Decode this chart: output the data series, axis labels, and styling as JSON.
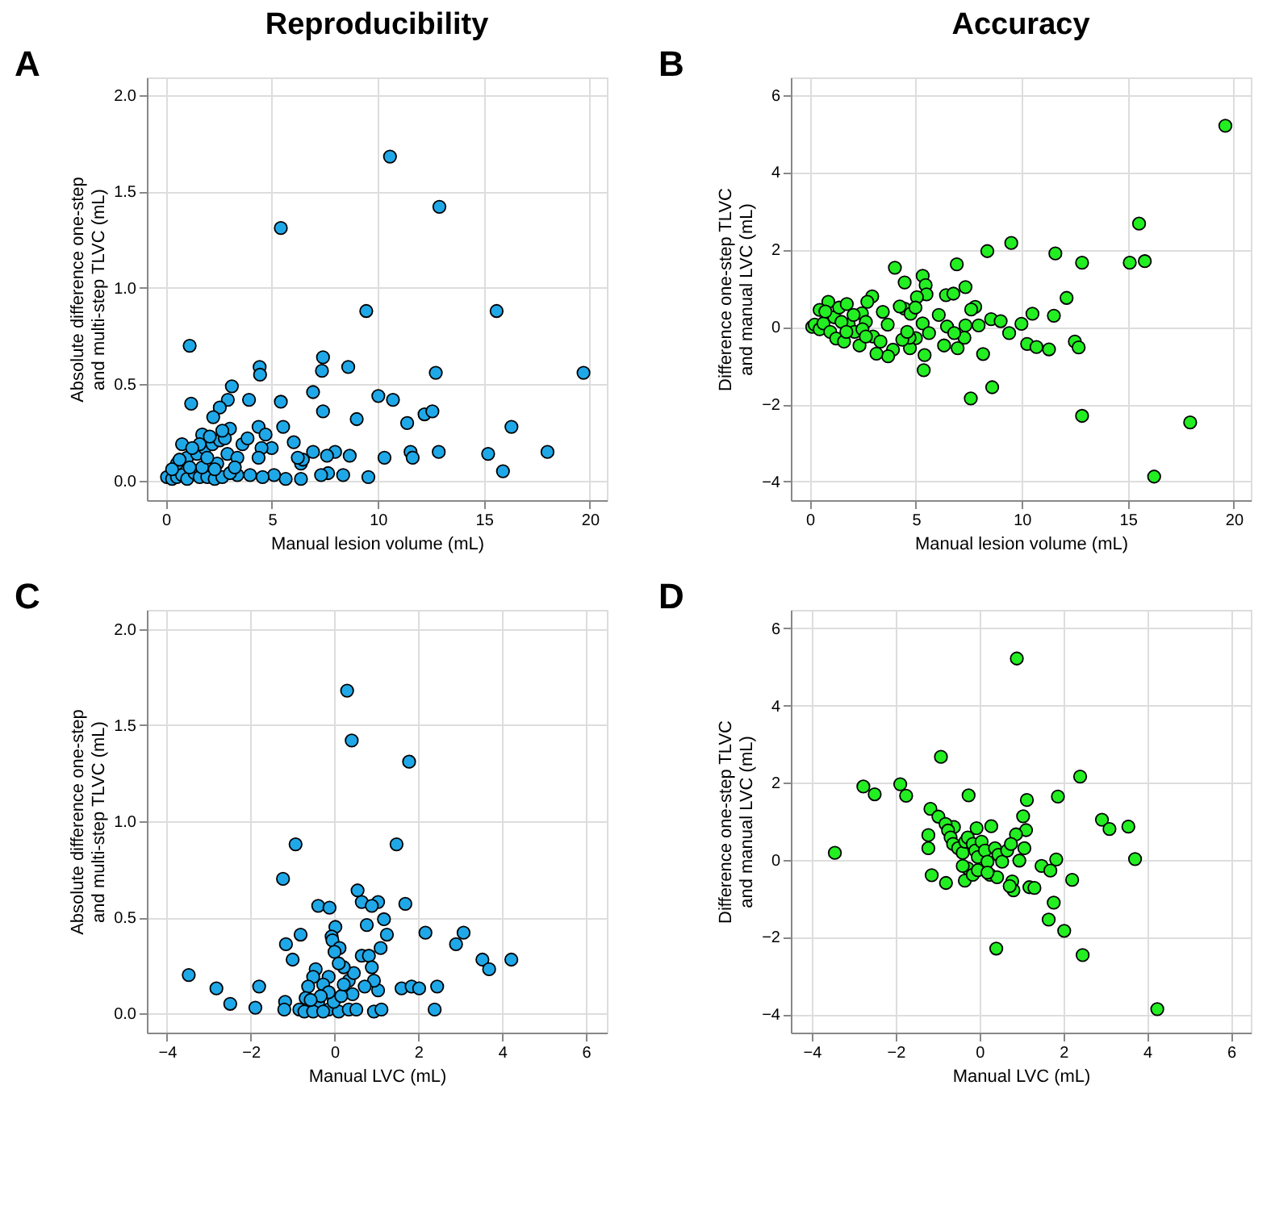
{
  "chart_data": [
    {
      "type": "scatter",
      "title": "Reproducibility",
      "annotations": [
        "A"
      ],
      "xlabel": "Manual lesion volume (mL)",
      "ylabel": "Absolute difference one-step\nand multi-step TLVC (mL)",
      "color": "#1fa8e8",
      "marker": "circle",
      "grid": true,
      "xlim": [
        -0.9,
        20.8
      ],
      "ylim": [
        -0.1,
        2.09
      ],
      "xticks": [
        0,
        5,
        10,
        15,
        20
      ],
      "yticks": [
        {
          "value": 0,
          "label": "0.0"
        },
        {
          "value": 0.5,
          "label": "0.5"
        },
        {
          "value": 1,
          "label": "1.0"
        },
        {
          "value": 1.5,
          "label": "1.5"
        },
        {
          "value": 2,
          "label": "2.0"
        }
      ],
      "x": [
        10.57,
        12.9,
        5.42,
        9.45,
        15.6,
        1.12,
        19.7,
        12.73,
        7.41,
        7.36,
        8.6,
        4.42,
        4.44,
        3.11,
        1.19,
        6.94,
        10.02,
        10.71,
        5.42,
        3.92,
        2.92,
        2.54,
        2.23,
        7.41,
        9.0,
        11.38,
        12.2,
        12.57,
        16.3,
        5.53,
        4.37,
        3.02,
        1.71,
        6.03,
        12.87,
        11.54,
        11.64,
        10.31,
        15.2,
        18.0,
        15.9,
        9.55,
        8.36,
        7.65,
        7.32,
        8.67,
        7.98,
        7.6,
        6.94,
        6.37,
        6.46,
        6.22,
        6.37,
        5.65,
        5.1,
        4.56,
        4.99,
        4.51,
        4.37,
        4.7,
        3.97,
        3.37,
        0.05,
        0.29,
        0.52,
        0.76,
        1.0,
        1.35,
        1.59,
        1.95,
        2.3,
        2.66,
        3.02,
        0.52,
        1.0,
        1.47,
        1.83,
        2.19,
        2.54,
        2.78,
        0.76,
        1.71,
        2.42,
        2.9,
        3.37,
        3.61,
        3.85,
        3.25,
        2.3,
        1.12,
        0.29,
        0.64,
        1.59,
        2.07,
        2.66,
        1.24,
        1.95
      ],
      "values": [
        1.68,
        1.42,
        1.31,
        0.88,
        0.88,
        0.7,
        0.56,
        0.56,
        0.64,
        0.57,
        0.59,
        0.59,
        0.55,
        0.49,
        0.4,
        0.46,
        0.44,
        0.42,
        0.41,
        0.42,
        0.42,
        0.38,
        0.33,
        0.36,
        0.32,
        0.3,
        0.345,
        0.36,
        0.28,
        0.28,
        0.28,
        0.27,
        0.24,
        0.2,
        0.15,
        0.15,
        0.12,
        0.12,
        0.14,
        0.15,
        0.05,
        0.02,
        0.03,
        0.04,
        0.03,
        0.13,
        0.15,
        0.13,
        0.15,
        0.09,
        0.11,
        0.12,
        0.01,
        0.01,
        0.03,
        0.02,
        0.17,
        0.17,
        0.12,
        0.24,
        0.03,
        0.03,
        0.02,
        0.01,
        0.02,
        0.03,
        0.01,
        0.04,
        0.02,
        0.02,
        0.01,
        0.02,
        0.04,
        0.09,
        0.12,
        0.14,
        0.17,
        0.19,
        0.21,
        0.22,
        0.19,
        0.07,
        0.09,
        0.14,
        0.12,
        0.19,
        0.22,
        0.07,
        0.06,
        0.07,
        0.06,
        0.11,
        0.19,
        0.23,
        0.26,
        0.17,
        0.12
      ]
    },
    {
      "type": "scatter",
      "title": "Accuracy",
      "annotations": [
        "B"
      ],
      "xlabel": "Manual lesion volume (mL)",
      "ylabel": "Difference one-step TLVC\nand manual LVC (mL)",
      "color": "#22ee22",
      "marker": "circle",
      "grid": true,
      "xlim": [
        -0.9,
        20.8
      ],
      "ylim": [
        -4.48,
        6.45
      ],
      "xticks": [
        0,
        5,
        10,
        15,
        20
      ],
      "yticks": [
        -4,
        -2,
        0,
        2,
        4,
        6
      ],
      "x": [
        19.6,
        15.53,
        15.09,
        15.8,
        9.5,
        8.37,
        11.58,
        12.84,
        6.93,
        4.01,
        4.47,
        5.32,
        5.46,
        7.34,
        12.11,
        6.42,
        6.77,
        5.5,
        5.05,
        6.08,
        7.8,
        7.61,
        10.5,
        11.51,
        8.55,
        9.0,
        9.98,
        7.96,
        7.34,
        6.47,
        5.32,
        9.4,
        7.29,
        6.81,
        6.33,
        6.97,
        10.25,
        10.69,
        11.28,
        12.5,
        12.68,
        8.17,
        5.41,
        5.37,
        8.6,
        7.59,
        12.84,
        17.94,
        16.24,
        5.62,
        5.0,
        4.72,
        4.7,
        4.47,
        4.75,
        4.98,
        4.24,
        4.36,
        4.59,
        3.92,
        3.69,
        3.14,
        3.67,
        3.44,
        2.94,
        2.71,
        2.98,
        3.33,
        0.11,
        0.23,
        0.46,
        0.64,
        0.87,
        0.96,
        1.15,
        1.24,
        1.38,
        1.61,
        1.74,
        1.83,
        2.11,
        2.34,
        2.45,
        2.64,
        0.46,
        0.73,
        1.49,
        2.06,
        1.72,
        2.48,
        2.64
      ],
      "values": [
        5.2,
        2.67,
        1.66,
        1.7,
        2.17,
        1.96,
        1.9,
        1.66,
        1.62,
        1.53,
        1.15,
        1.32,
        1.08,
        1.03,
        0.75,
        0.82,
        0.86,
        0.84,
        0.77,
        0.31,
        0.52,
        0.45,
        0.34,
        0.29,
        0.2,
        0.15,
        0.08,
        0.04,
        0.04,
        0.01,
        0.09,
        -0.16,
        -0.28,
        -0.16,
        -0.48,
        -0.55,
        -0.44,
        -0.52,
        -0.58,
        -0.38,
        -0.53,
        -0.7,
        -0.73,
        -1.12,
        -1.56,
        -1.85,
        -2.3,
        -2.47,
        -3.87,
        -0.16,
        -0.29,
        -0.55,
        -0.28,
        0.47,
        0.34,
        0.5,
        0.53,
        -0.33,
        -0.13,
        -0.59,
        -0.76,
        -0.69,
        0.06,
        0.39,
        0.79,
        0.65,
        -0.25,
        -0.38,
        0,
        0.06,
        -0.06,
        0.09,
        0.65,
        -0.13,
        0.25,
        -0.3,
        0.5,
        -0.38,
        0.59,
        0.06,
        -0.13,
        -0.48,
        0.35,
        0.13,
        0.44,
        0.4,
        0.13,
        0.31,
        -0.13,
        -0.06,
        -0.25
      ]
    },
    {
      "type": "scatter",
      "annotations": [
        "C"
      ],
      "xlabel": "Manual LVC (mL)",
      "ylabel": "Absolute difference one-step\nand multi-step TLVC (mL)",
      "color": "#1fa8e8",
      "marker": "circle",
      "grid": true,
      "xlim": [
        -4.48,
        6.5
      ],
      "ylim": [
        -0.1,
        2.1
      ],
      "xticks": [
        -4,
        -2,
        0,
        2,
        4,
        6
      ],
      "yticks": [
        {
          "value": 0,
          "label": "0.0"
        },
        {
          "value": 0.5,
          "label": "0.5"
        },
        {
          "value": 1,
          "label": "1.0"
        },
        {
          "value": 1.5,
          "label": "1.5"
        },
        {
          "value": 2,
          "label": "2.0"
        }
      ],
      "x": [
        0.3,
        0.41,
        1.78,
        -0.93,
        1.48,
        -1.23,
        -0.39,
        -0.12,
        0.55,
        0.65,
        1.04,
        0.89,
        1.69,
        1.18,
        0.02,
        0.77,
        -0.81,
        -0.07,
        -0.05,
        1.25,
        2.17,
        3.08,
        2.9,
        -1.16,
        1.1,
        0.12,
        0.0,
        -1.0,
        3.53,
        3.69,
        4.22,
        0.65,
        0.82,
        0.89,
        -3.48,
        -2.82,
        -2.49,
        -1.89,
        -1.8,
        -1.18,
        -1.2,
        -0.84,
        -0.72,
        1.6,
        1.84,
        2.02,
        2.45,
        2.39,
        0.94,
        1.12,
        1.04,
        0.94,
        0.72,
        0.43,
        0.34,
        0.46,
        0.22,
        0.1,
        -0.14,
        -0.27,
        -0.45,
        -0.51,
        -0.63,
        -0.69,
        -0.39,
        -0.14,
        0.1,
        0.34,
        0.52,
        -0.51,
        -0.27,
        -0.02,
        0.16,
        0.22,
        -0.14,
        -0.33,
        -0.57
      ],
      "values": [
        1.68,
        1.42,
        1.31,
        0.88,
        0.88,
        0.7,
        0.56,
        0.55,
        0.64,
        0.58,
        0.58,
        0.56,
        0.57,
        0.49,
        0.45,
        0.46,
        0.41,
        0.4,
        0.38,
        0.41,
        0.42,
        0.42,
        0.36,
        0.36,
        0.34,
        0.34,
        0.32,
        0.28,
        0.28,
        0.23,
        0.28,
        0.3,
        0.3,
        0.24,
        0.2,
        0.13,
        0.05,
        0.03,
        0.14,
        0.06,
        0.02,
        0.02,
        0.01,
        0.13,
        0.14,
        0.13,
        0.14,
        0.02,
        0.01,
        0.02,
        0.12,
        0.17,
        0.14,
        0.1,
        0.17,
        0.21,
        0.24,
        0.26,
        0.19,
        0.15,
        0.23,
        0.19,
        0.14,
        0.08,
        0.06,
        0.02,
        0.01,
        0.02,
        0.02,
        0.01,
        0.01,
        0.06,
        0.09,
        0.15,
        0.11,
        0.09,
        0.07
      ]
    },
    {
      "type": "scatter",
      "annotations": [
        "D"
      ],
      "xlabel": "Manual LVC (mL)",
      "ylabel": "Difference one-step TLVC\nand manual LVC (mL)",
      "color": "#22ee22",
      "marker": "circle",
      "grid": true,
      "xlim": [
        -4.5,
        6.47
      ],
      "ylim": [
        -4.48,
        6.48
      ],
      "xticks": [
        -4,
        -2,
        0,
        2,
        4,
        6
      ],
      "yticks": [
        -4,
        -2,
        0,
        2,
        4,
        6
      ],
      "x": [
        0.89,
        -0.92,
        2.4,
        -2.77,
        -2.5,
        -1.89,
        -1.75,
        -0.26,
        1.87,
        1.13,
        1.04,
        2.92,
        3.1,
        3.55,
        1.11,
        -1.17,
        -0.98,
        -1.22,
        -1.22,
        -3.45,
        3.71,
        -1.14,
        -0.8,
        -0.35,
        0.28,
        -0.07,
        -0.61,
        -0.81,
        1.07,
        0.87,
        0.95,
        1.83,
        1.48,
        1.69,
        2.21,
        1.19,
        1.31,
        0.78,
        0.81,
        0.72,
        1.77,
        1.65,
        2.02,
        0.4,
        2.46,
        4.24,
        -0.75,
        -0.69,
        -0.63,
        -0.51,
        -0.4,
        -0.34,
        -0.28,
        -0.16,
        -0.1,
        -0.04,
        0.05,
        0.13,
        0.19,
        0.25,
        0.37,
        0.45,
        0.54,
        0.66,
        0.75,
        -0.28,
        -0.16,
        -0.04,
        0.42,
        0.19,
        -0.4
      ],
      "values": [
        5.22,
        2.67,
        2.16,
        1.9,
        1.7,
        1.96,
        1.66,
        1.67,
        1.64,
        1.55,
        1.13,
        1.04,
        0.8,
        0.86,
        0.77,
        1.32,
        1.12,
        0.64,
        0.3,
        0.18,
        0.02,
        -0.4,
        -0.6,
        -0.54,
        0.87,
        0.82,
        0.85,
        0.93,
        0.3,
        0.66,
        -0.02,
        0.01,
        -0.16,
        -0.28,
        -0.52,
        -0.71,
        -0.73,
        -0.56,
        -0.79,
        -0.68,
        -1.11,
        -1.55,
        -1.84,
        -2.3,
        -2.47,
        -3.87,
        0.76,
        0.58,
        0.41,
        0.3,
        0.18,
        0.47,
        0.58,
        0.41,
        0.24,
        0.07,
        0.47,
        0.24,
        -0.05,
        -0.39,
        0.3,
        0.13,
        -0.05,
        0.24,
        0.41,
        -0.22,
        -0.39,
        -0.27,
        -0.45,
        -0.33,
        -0.16
      ]
    }
  ]
}
